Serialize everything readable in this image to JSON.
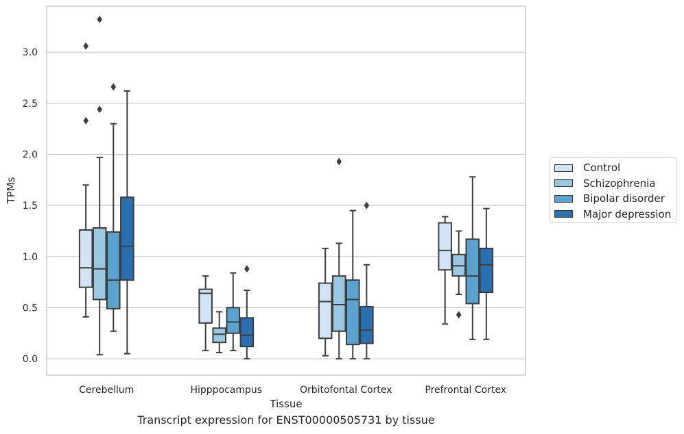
{
  "chart_data": {
    "type": "box",
    "title": "",
    "caption": "Transcript expression for ENST00000505731 by tissue",
    "xlabel": "Tissue",
    "ylabel": "TPMs",
    "ylim": [
      -0.16,
      3.45
    ],
    "yticks": [
      "0.0",
      "0.5",
      "1.0",
      "1.5",
      "2.0",
      "2.5",
      "3.0"
    ],
    "categories": [
      "Cerebellum",
      "Hipppocampus",
      "Orbitofontal Cortex",
      "Prefrontal Cortex"
    ],
    "grid": true,
    "legend_position": "right",
    "series": [
      {
        "name": "Control",
        "color": "#d2e3f3",
        "boxes": [
          {
            "whislo": 0.41,
            "q1": 0.7,
            "med": 0.89,
            "q3": 1.26,
            "whishi": 1.7,
            "fliers": [
              2.33,
              3.06
            ]
          },
          {
            "whislo": 0.08,
            "q1": 0.35,
            "med": 0.64,
            "q3": 0.68,
            "whishi": 0.81,
            "fliers": []
          },
          {
            "whislo": 0.03,
            "q1": 0.2,
            "med": 0.56,
            "q3": 0.74,
            "whishi": 1.08,
            "fliers": []
          },
          {
            "whislo": 0.34,
            "q1": 0.87,
            "med": 1.06,
            "q3": 1.33,
            "whishi": 1.39,
            "fliers": []
          }
        ]
      },
      {
        "name": "Schizophrenia",
        "color": "#9ac8e0",
        "boxes": [
          {
            "whislo": 0.04,
            "q1": 0.58,
            "med": 0.88,
            "q3": 1.28,
            "whishi": 1.97,
            "fliers": [
              2.44,
              3.32
            ]
          },
          {
            "whislo": 0.06,
            "q1": 0.16,
            "med": 0.24,
            "q3": 0.3,
            "whishi": 0.46,
            "fliers": []
          },
          {
            "whislo": 0.0,
            "q1": 0.27,
            "med": 0.53,
            "q3": 0.81,
            "whishi": 1.13,
            "fliers": [
              1.93
            ]
          },
          {
            "whislo": 0.63,
            "q1": 0.81,
            "med": 0.91,
            "q3": 1.02,
            "whishi": 1.25,
            "fliers": [
              0.43
            ]
          }
        ]
      },
      {
        "name": "Bipolar disorder",
        "color": "#5ba3cf",
        "boxes": [
          {
            "whislo": 0.27,
            "q1": 0.49,
            "med": 0.77,
            "q3": 1.24,
            "whishi": 2.3,
            "fliers": [
              2.66
            ]
          },
          {
            "whislo": 0.08,
            "q1": 0.25,
            "med": 0.36,
            "q3": 0.5,
            "whishi": 0.84,
            "fliers": []
          },
          {
            "whislo": 0.0,
            "q1": 0.14,
            "med": 0.58,
            "q3": 0.77,
            "whishi": 1.45,
            "fliers": []
          },
          {
            "whislo": 0.19,
            "q1": 0.54,
            "med": 0.81,
            "q3": 1.17,
            "whishi": 1.78,
            "fliers": []
          }
        ]
      },
      {
        "name": "Major depression",
        "color": "#2a6fb0",
        "boxes": [
          {
            "whislo": 0.05,
            "q1": 0.77,
            "med": 1.1,
            "q3": 1.58,
            "whishi": 2.62,
            "fliers": []
          },
          {
            "whislo": 0.0,
            "q1": 0.12,
            "med": 0.23,
            "q3": 0.4,
            "whishi": 0.67,
            "fliers": [
              0.88
            ]
          },
          {
            "whislo": 0.0,
            "q1": 0.15,
            "med": 0.28,
            "q3": 0.51,
            "whishi": 0.92,
            "fliers": [
              1.5
            ]
          },
          {
            "whislo": 0.19,
            "q1": 0.65,
            "med": 0.92,
            "q3": 1.08,
            "whishi": 1.47,
            "fliers": []
          }
        ]
      }
    ]
  }
}
